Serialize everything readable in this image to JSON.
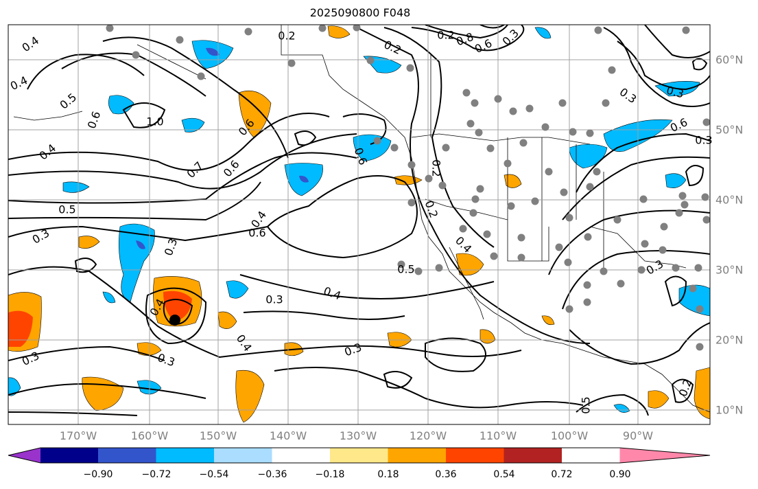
{
  "title": "2025090800 F048",
  "x_ticks": [
    "170°W",
    "160°W",
    "150°W",
    "140°W",
    "130°W",
    "120°W",
    "110°W",
    "100°W",
    "90°W"
  ],
  "y_ticks": [
    "60°N",
    "50°N",
    "40°N",
    "30°N",
    "20°N",
    "10°N"
  ],
  "colorbar": {
    "tick_labels": [
      "−0.90",
      "−0.72",
      "−0.54",
      "−0.36",
      "−0.18",
      "0.18",
      "0.36",
      "0.54",
      "0.72",
      "0.90"
    ],
    "colors": [
      "#9933cc",
      "#00008b",
      "#3355cc",
      "#00bbff",
      "#aaddff",
      "#ffffff",
      "#ffe88a",
      "#ffa500",
      "#ff4400",
      "#b22222",
      "#ff88aa"
    ]
  },
  "contour_labels": [
    "0.4",
    "0.4",
    "0.5",
    "0.6",
    "1.0",
    "0.6",
    "0.4",
    "0.7",
    "0.6",
    "0.4",
    "0.6",
    "0.5",
    "0.3",
    "0.3",
    "0.3",
    "0.4",
    "0.4",
    "0.3",
    "0.3",
    "0.3",
    "0.5",
    "0.4",
    "0.6",
    "0.2",
    "0.2",
    "0.3",
    "0.2",
    "0.2",
    "0.8",
    "0.6",
    "0.4",
    "0.3",
    "0.3",
    "0.6",
    "0.5",
    "0.3",
    "0.2",
    "0.3",
    "0.2"
  ]
}
